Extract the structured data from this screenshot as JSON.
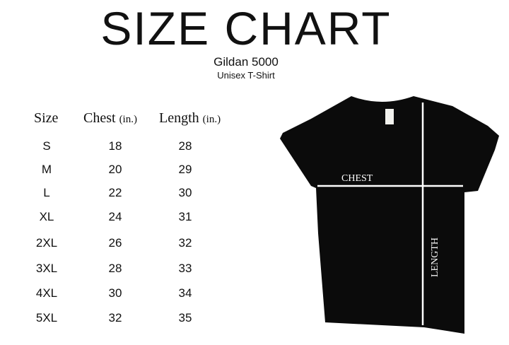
{
  "title": "SIZE CHART",
  "product": "Gildan 5000",
  "subtitle": "Unisex T-Shirt",
  "headers": {
    "size": "Size",
    "chest": "Chest",
    "chest_unit": "(in.)",
    "length": "Length",
    "length_unit": "(in.)"
  },
  "rows": [
    {
      "size": "S",
      "chest": "18",
      "length": "28"
    },
    {
      "size": "M",
      "chest": "20",
      "length": "29"
    },
    {
      "size": "L",
      "chest": "22",
      "length": "30"
    },
    {
      "size": "XL",
      "chest": "24",
      "length": "31"
    },
    {
      "size": "2XL",
      "chest": "26",
      "length": "32"
    },
    {
      "size": "3XL",
      "chest": "28",
      "length": "33"
    },
    {
      "size": "4XL",
      "chest": "30",
      "length": "34"
    },
    {
      "size": "5XL",
      "chest": "32",
      "length": "35"
    }
  ],
  "diagram": {
    "chest_label": "CHEST",
    "length_label": "LENGTH",
    "shirt_color": "#0b0b0b"
  }
}
